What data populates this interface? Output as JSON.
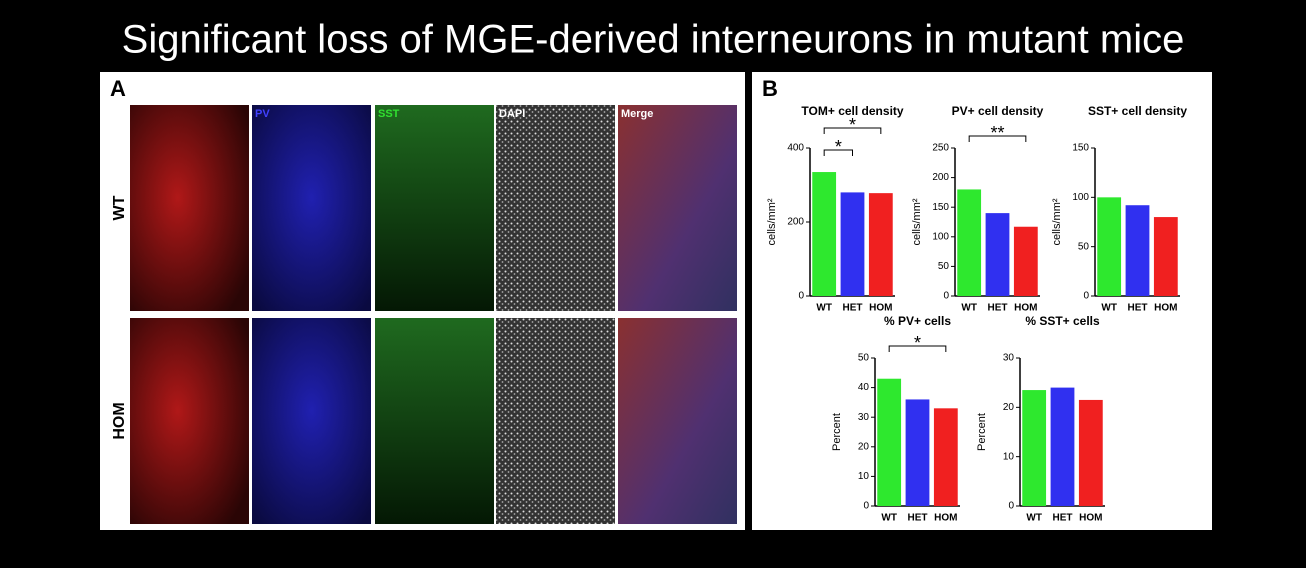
{
  "title": "Significant loss of MGE-derived interneurons in mutant mice",
  "panel_a": {
    "label": "A",
    "channels": [
      "PV",
      "SST",
      "DAPI",
      "Merge"
    ],
    "rows": [
      "WT",
      "HOM"
    ]
  },
  "panel_b": {
    "label": "B"
  },
  "chart_data": [
    {
      "type": "bar",
      "title": "TOM+ cell density",
      "ylabel": "cells/mm²",
      "categories": [
        "WT",
        "HET",
        "HOM"
      ],
      "values": [
        335,
        280,
        278
      ],
      "colors": [
        "#2ee82e",
        "#3030f0",
        "#f02020"
      ],
      "ylim": [
        0,
        400
      ],
      "yticks": [
        0,
        200,
        400
      ],
      "significance": [
        {
          "from": 0,
          "to": 1,
          "label": "*"
        },
        {
          "from": 0,
          "to": 2,
          "label": "*"
        }
      ]
    },
    {
      "type": "bar",
      "title": "PV+ cell density",
      "ylabel": "cells/mm²",
      "categories": [
        "WT",
        "HET",
        "HOM"
      ],
      "values": [
        180,
        140,
        117
      ],
      "colors": [
        "#2ee82e",
        "#3030f0",
        "#f02020"
      ],
      "ylim": [
        0,
        250
      ],
      "yticks": [
        0,
        50,
        100,
        150,
        200,
        250
      ],
      "significance": [
        {
          "from": 0,
          "to": 2,
          "label": "**"
        }
      ]
    },
    {
      "type": "bar",
      "title": "SST+ cell density",
      "ylabel": "cells/mm²",
      "categories": [
        "WT",
        "HET",
        "HOM"
      ],
      "values": [
        100,
        92,
        80
      ],
      "colors": [
        "#2ee82e",
        "#3030f0",
        "#f02020"
      ],
      "ylim": [
        0,
        150
      ],
      "yticks": [
        0,
        50,
        100,
        150
      ],
      "significance": []
    },
    {
      "type": "bar",
      "title": "% PV+ cells",
      "ylabel": "Percent",
      "categories": [
        "WT",
        "HET",
        "HOM"
      ],
      "values": [
        43,
        36,
        33
      ],
      "colors": [
        "#2ee82e",
        "#3030f0",
        "#f02020"
      ],
      "ylim": [
        0,
        50
      ],
      "yticks": [
        0,
        10,
        20,
        30,
        40,
        50
      ],
      "significance": [
        {
          "from": 0,
          "to": 2,
          "label": "*"
        }
      ]
    },
    {
      "type": "bar",
      "title": "% SST+ cells",
      "ylabel": "Percent",
      "categories": [
        "WT",
        "HET",
        "HOM"
      ],
      "values": [
        23.5,
        24,
        21.5
      ],
      "colors": [
        "#2ee82e",
        "#3030f0",
        "#f02020"
      ],
      "ylim": [
        0,
        30
      ],
      "yticks": [
        0,
        10,
        20,
        30
      ],
      "significance": []
    }
  ]
}
